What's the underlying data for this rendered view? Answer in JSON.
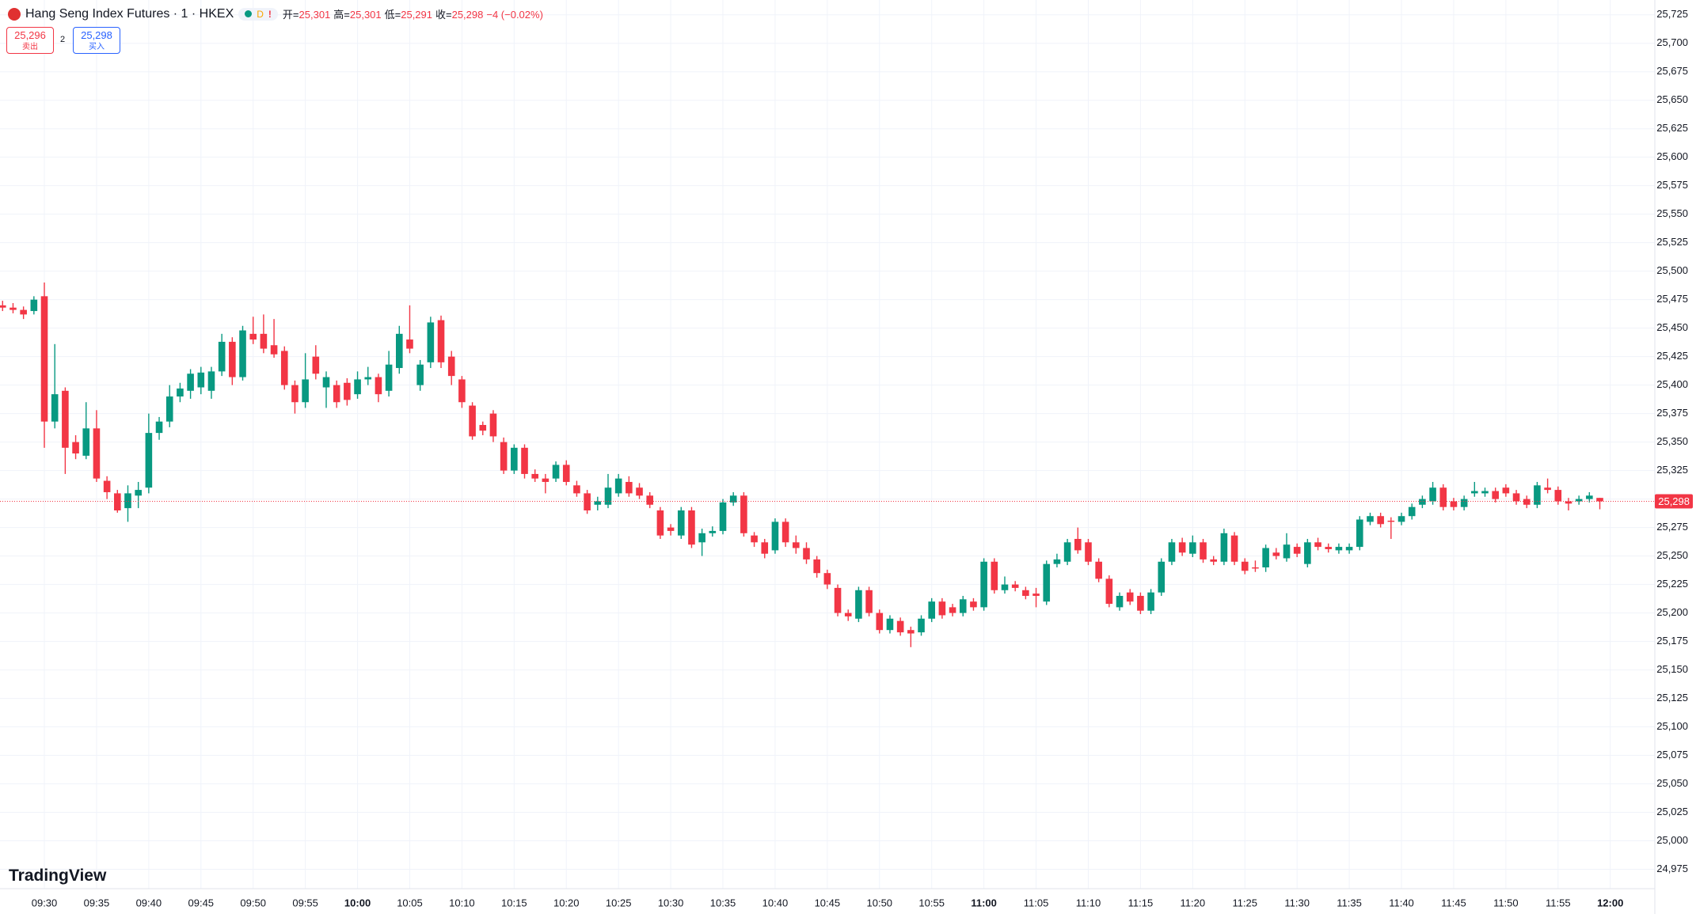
{
  "header": {
    "symbol": "Hang Seng Index Futures · 1 · HKEX",
    "badge_d": "D",
    "badge_alert": "!",
    "open_label": "开=",
    "open": "25,301",
    "high_label": "高=",
    "high": "25,301",
    "low_label": "低=",
    "low": "25,291",
    "close_label": "收=",
    "close": "25,298",
    "change": "−4 (−0.02%)"
  },
  "order": {
    "sell_price": "25,296",
    "sell_label": "卖出",
    "quantity": "2",
    "buy_price": "25,298",
    "buy_label": "买入"
  },
  "brand": "TradingView",
  "chart_data": {
    "type": "candlestick",
    "up_color": "#089981",
    "down_color": "#f23645",
    "grid": true,
    "ylim": [
      24958,
      25738
    ],
    "yticks": [
      {
        "value": 24975,
        "label": "24,975"
      },
      {
        "value": 25000,
        "label": "25,000"
      },
      {
        "value": 25025,
        "label": "25,025"
      },
      {
        "value": 25050,
        "label": "25,050"
      },
      {
        "value": 25075,
        "label": "25,075"
      },
      {
        "value": 25100,
        "label": "25,100"
      },
      {
        "value": 25125,
        "label": "25,125"
      },
      {
        "value": 25150,
        "label": "25,150"
      },
      {
        "value": 25175,
        "label": "25,175"
      },
      {
        "value": 25200,
        "label": "25,200"
      },
      {
        "value": 25225,
        "label": "25,225"
      },
      {
        "value": 25250,
        "label": "25,250"
      },
      {
        "value": 25275,
        "label": "25,275"
      },
      {
        "value": 25300,
        "label": "25,300"
      },
      {
        "value": 25325,
        "label": "25,325"
      },
      {
        "value": 25350,
        "label": "25,350"
      },
      {
        "value": 25375,
        "label": "25,375"
      },
      {
        "value": 25400,
        "label": "25,400"
      },
      {
        "value": 25425,
        "label": "25,425"
      },
      {
        "value": 25450,
        "label": "25,450"
      },
      {
        "value": 25475,
        "label": "25,475"
      },
      {
        "value": 25500,
        "label": "25,500"
      },
      {
        "value": 25525,
        "label": "25,525"
      },
      {
        "value": 25550,
        "label": "25,550"
      },
      {
        "value": 25575,
        "label": "25,575"
      },
      {
        "value": 25600,
        "label": "25,600"
      },
      {
        "value": 25625,
        "label": "25,625"
      },
      {
        "value": 25650,
        "label": "25,650"
      },
      {
        "value": 25675,
        "label": "25,675"
      },
      {
        "value": 25700,
        "label": "25,700"
      },
      {
        "value": 25725,
        "label": "25,725"
      }
    ],
    "xticks": [
      "09:30",
      "09:35",
      "09:40",
      "09:45",
      "09:50",
      "09:55",
      "10:00",
      "10:05",
      "10:10",
      "10:15",
      "10:20",
      "10:25",
      "10:30",
      "10:35",
      "10:40",
      "10:45",
      "10:50",
      "10:55",
      "11:00",
      "11:05",
      "11:10",
      "11:15",
      "11:20",
      "11:25",
      "11:30",
      "11:35",
      "11:40",
      "11:45",
      "11:50",
      "11:55",
      "12:00"
    ],
    "last_price": {
      "value": 25298,
      "label": "25,298"
    },
    "candles": [
      [
        25470,
        25474,
        25465,
        25468
      ],
      [
        25468,
        25472,
        25463,
        25466
      ],
      [
        25466,
        25469,
        25458,
        25462
      ],
      [
        25465,
        25478,
        25462,
        25475
      ],
      [
        25478,
        25490,
        25345,
        25368
      ],
      [
        25368,
        25436,
        25362,
        25392
      ],
      [
        25395,
        25398,
        25322,
        25345
      ],
      [
        25350,
        25356,
        25335,
        25340
      ],
      [
        25338,
        25385,
        25335,
        25362
      ],
      [
        25362,
        25378,
        25315,
        25318
      ],
      [
        25316,
        25320,
        25300,
        25306
      ],
      [
        25305,
        25308,
        25288,
        25290
      ],
      [
        25292,
        25312,
        25280,
        25305
      ],
      [
        25303,
        25315,
        25292,
        25308
      ],
      [
        25310,
        25375,
        25305,
        25358
      ],
      [
        25358,
        25372,
        25352,
        25368
      ],
      [
        25368,
        25400,
        25363,
        25390
      ],
      [
        25390,
        25402,
        25385,
        25397
      ],
      [
        25395,
        25414,
        25388,
        25410
      ],
      [
        25398,
        25416,
        25392,
        25411
      ],
      [
        25395,
        25416,
        25388,
        25412
      ],
      [
        25412,
        25445,
        25408,
        25438
      ],
      [
        25438,
        25442,
        25400,
        25407
      ],
      [
        25407,
        25452,
        25404,
        25448
      ],
      [
        25445,
        25460,
        25436,
        25440
      ],
      [
        25445,
        25462,
        25428,
        25432
      ],
      [
        25435,
        25458,
        25424,
        25427
      ],
      [
        25430,
        25434,
        25396,
        25400
      ],
      [
        25400,
        25404,
        25375,
        25385
      ],
      [
        25385,
        25428,
        25380,
        25405
      ],
      [
        25425,
        25435,
        25405,
        25410
      ],
      [
        25398,
        25412,
        25380,
        25407
      ],
      [
        25400,
        25404,
        25380,
        25385
      ],
      [
        25402,
        25406,
        25382,
        25387
      ],
      [
        25392,
        25412,
        25388,
        25405
      ],
      [
        25405,
        25416,
        25400,
        25407
      ],
      [
        25407,
        25410,
        25385,
        25392
      ],
      [
        25395,
        25430,
        25390,
        25418
      ],
      [
        25415,
        25452,
        25410,
        25445
      ],
      [
        25440,
        25470,
        25428,
        25432
      ],
      [
        25400,
        25422,
        25395,
        25418
      ],
      [
        25420,
        25460,
        25415,
        25455
      ],
      [
        25457,
        25461,
        25415,
        25420
      ],
      [
        25425,
        25430,
        25400,
        25408
      ],
      [
        25405,
        25408,
        25380,
        25385
      ],
      [
        25382,
        25385,
        25352,
        25355
      ],
      [
        25365,
        25368,
        25356,
        25360
      ],
      [
        25375,
        25378,
        25350,
        25355
      ],
      [
        25350,
        25354,
        25322,
        25325
      ],
      [
        25325,
        25348,
        25322,
        25345
      ],
      [
        25345,
        25348,
        25318,
        25322
      ],
      [
        25322,
        25326,
        25315,
        25318
      ],
      [
        25318,
        25322,
        25305,
        25315
      ],
      [
        25318,
        25333,
        25315,
        25330
      ],
      [
        25330,
        25334,
        25312,
        25315
      ],
      [
        25312,
        25316,
        25302,
        25305
      ],
      [
        25305,
        25308,
        25287,
        25290
      ],
      [
        25295,
        25302,
        25290,
        25298
      ],
      [
        25295,
        25322,
        25292,
        25310
      ],
      [
        25305,
        25322,
        25302,
        25318
      ],
      [
        25315,
        25320,
        25302,
        25305
      ],
      [
        25310,
        25314,
        25300,
        25303
      ],
      [
        25303,
        25306,
        25292,
        25295
      ],
      [
        25290,
        25293,
        25265,
        25268
      ],
      [
        25275,
        25278,
        25268,
        25272
      ],
      [
        25268,
        25293,
        25265,
        25290
      ],
      [
        25290,
        25293,
        25257,
        25260
      ],
      [
        25262,
        25274,
        25250,
        25270
      ],
      [
        25270,
        25276,
        25267,
        25272
      ],
      [
        25272,
        25300,
        25269,
        25297
      ],
      [
        25297,
        25306,
        25294,
        25303
      ],
      [
        25303,
        25306,
        25267,
        25270
      ],
      [
        25268,
        25271,
        25258,
        25262
      ],
      [
        25262,
        25265,
        25248,
        25252
      ],
      [
        25255,
        25283,
        25252,
        25280
      ],
      [
        25280,
        25283,
        25258,
        25262
      ],
      [
        25262,
        25268,
        25252,
        25257
      ],
      [
        25257,
        25262,
        25243,
        25247
      ],
      [
        25247,
        25250,
        25231,
        25235
      ],
      [
        25235,
        25238,
        25221,
        25225
      ],
      [
        25222,
        25225,
        25197,
        25200
      ],
      [
        25200,
        25203,
        25193,
        25197
      ],
      [
        25195,
        25223,
        25192,
        25220
      ],
      [
        25220,
        25223,
        25197,
        25200
      ],
      [
        25200,
        25203,
        25182,
        25185
      ],
      [
        25185,
        25198,
        25182,
        25195
      ],
      [
        25193,
        25196,
        25180,
        25183
      ],
      [
        25185,
        25188,
        25170,
        25182
      ],
      [
        25183,
        25198,
        25180,
        25195
      ],
      [
        25195,
        25213,
        25192,
        25210
      ],
      [
        25210,
        25213,
        25195,
        25198
      ],
      [
        25205,
        25208,
        25197,
        25200
      ],
      [
        25200,
        25215,
        25197,
        25212
      ],
      [
        25210,
        25213,
        25202,
        25205
      ],
      [
        25205,
        25248,
        25202,
        25245
      ],
      [
        25245,
        25248,
        25217,
        25220
      ],
      [
        25220,
        25232,
        25217,
        25225
      ],
      [
        25225,
        25228,
        25219,
        25222
      ],
      [
        25220,
        25223,
        25212,
        25215
      ],
      [
        25217,
        25222,
        25205,
        25215
      ],
      [
        25210,
        25246,
        25207,
        25243
      ],
      [
        25243,
        25252,
        25240,
        25247
      ],
      [
        25245,
        25265,
        25242,
        25262
      ],
      [
        25265,
        25275,
        25252,
        25255
      ],
      [
        25262,
        25265,
        25242,
        25245
      ],
      [
        25245,
        25248,
        25227,
        25230
      ],
      [
        25230,
        25233,
        25205,
        25208
      ],
      [
        25205,
        25218,
        25202,
        25215
      ],
      [
        25218,
        25221,
        25207,
        25210
      ],
      [
        25215,
        25218,
        25199,
        25202
      ],
      [
        25202,
        25221,
        25199,
        25218
      ],
      [
        25218,
        25248,
        25215,
        25245
      ],
      [
        25245,
        25265,
        25242,
        25262
      ],
      [
        25262,
        25266,
        25250,
        25253
      ],
      [
        25252,
        25268,
        25249,
        25262
      ],
      [
        25262,
        25265,
        25244,
        25247
      ],
      [
        25247,
        25250,
        25242,
        25245
      ],
      [
        25245,
        25274,
        25242,
        25270
      ],
      [
        25268,
        25271,
        25242,
        25245
      ],
      [
        25245,
        25248,
        25234,
        25237
      ],
      [
        25240,
        25246,
        25236,
        25239
      ],
      [
        25240,
        25260,
        25236,
        25257
      ],
      [
        25253,
        25257,
        25247,
        25250
      ],
      [
        25248,
        25270,
        25245,
        25260
      ],
      [
        25258,
        25261,
        25249,
        25252
      ],
      [
        25243,
        25265,
        25240,
        25262
      ],
      [
        25262,
        25266,
        25255,
        25258
      ],
      [
        25258,
        25261,
        25253,
        25256
      ],
      [
        25255,
        25261,
        25252,
        25258
      ],
      [
        25255,
        25261,
        25252,
        25258
      ],
      [
        25258,
        25285,
        25255,
        25282
      ],
      [
        25280,
        25288,
        25277,
        25285
      ],
      [
        25285,
        25288,
        25275,
        25278
      ],
      [
        25281,
        25284,
        25265,
        25280
      ],
      [
        25280,
        25288,
        25277,
        25285
      ],
      [
        25285,
        25296,
        25282,
        25293
      ],
      [
        25295,
        25303,
        25292,
        25300
      ],
      [
        25298,
        25315,
        25295,
        25310
      ],
      [
        25310,
        25313,
        25290,
        25293
      ],
      [
        25298,
        25301,
        25290,
        25293
      ],
      [
        25293,
        25303,
        25290,
        25300
      ],
      [
        25305,
        25315,
        25302,
        25307
      ],
      [
        25305,
        25310,
        25302,
        25307
      ],
      [
        25307,
        25310,
        25297,
        25300
      ],
      [
        25310,
        25313,
        25302,
        25305
      ],
      [
        25305,
        25308,
        25295,
        25298
      ],
      [
        25300,
        25303,
        25292,
        25295
      ],
      [
        25295,
        25315,
        25292,
        25312
      ],
      [
        25310,
        25318,
        25305,
        25308
      ],
      [
        25308,
        25311,
        25295,
        25298
      ],
      [
        25298,
        25301,
        25290,
        25296
      ],
      [
        25298,
        25303,
        25295,
        25300
      ],
      [
        25300,
        25306,
        25297,
        25303
      ],
      [
        25301,
        25301,
        25291,
        25298
      ]
    ]
  }
}
